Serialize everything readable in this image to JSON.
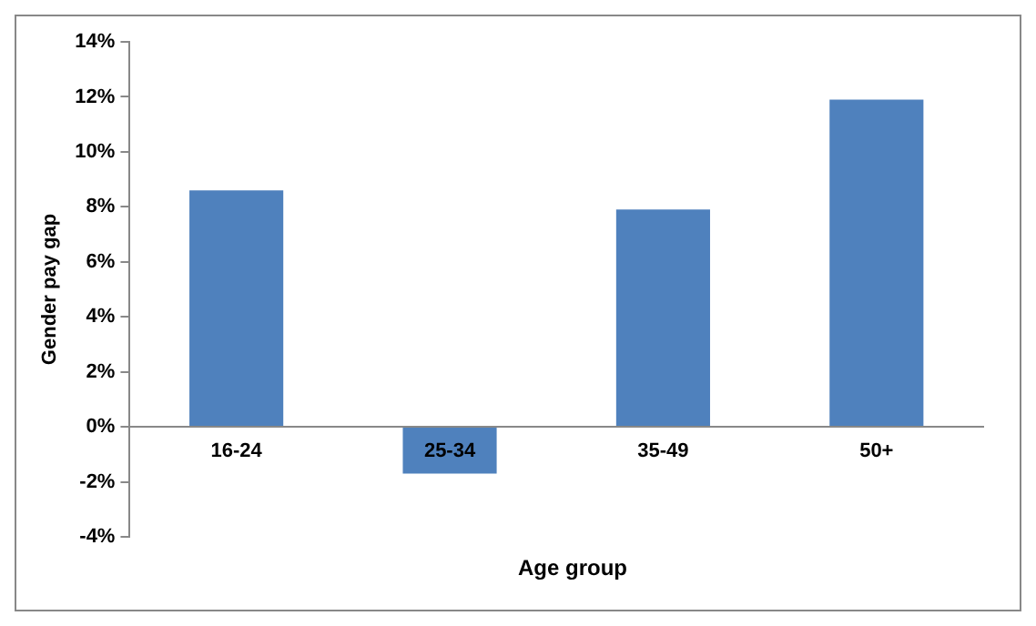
{
  "chart_data": {
    "type": "bar",
    "xlabel": "Age group",
    "ylabel": "Gender pay gap",
    "categories": [
      "16-24",
      "25-34",
      "35-49",
      "50+"
    ],
    "series": [
      {
        "color": "#4f81bd",
        "values": [
          8.6,
          -1.7,
          7.9,
          11.9
        ]
      }
    ],
    "ylim": [
      -4,
      14
    ],
    "yticks": [
      {
        "value": -4,
        "label": "-4%"
      },
      {
        "value": -2,
        "label": "-2%"
      },
      {
        "value": 0,
        "label": "0%"
      },
      {
        "value": 2,
        "label": "2%"
      },
      {
        "value": 4,
        "label": "4%"
      },
      {
        "value": 6,
        "label": "6%"
      },
      {
        "value": 8,
        "label": "8%"
      },
      {
        "value": 10,
        "label": "10%"
      },
      {
        "value": 12,
        "label": "12%"
      },
      {
        "value": 14,
        "label": "14%"
      }
    ],
    "grid": false,
    "legend": false
  }
}
